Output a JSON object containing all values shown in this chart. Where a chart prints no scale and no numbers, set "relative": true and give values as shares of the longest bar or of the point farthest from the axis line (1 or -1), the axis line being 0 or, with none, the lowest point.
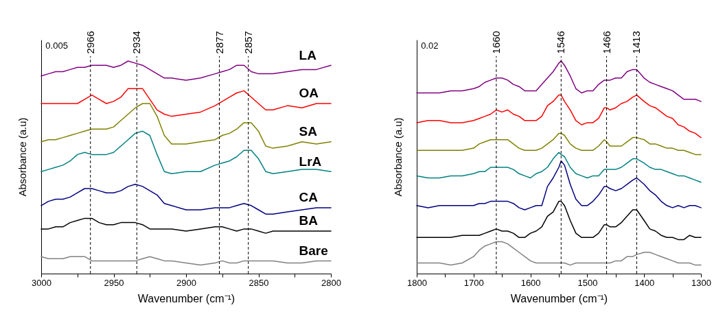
{
  "chart_data": [
    {
      "type": "line",
      "relative": true,
      "xlabel": "Wavenumber (cm⁻¹)",
      "ylabel": "Absorbance (a.u)",
      "xlim": [
        3000,
        2800
      ],
      "xticks": [
        3000,
        {
          "value": 2975,
          "label": null
        },
        2950,
        {
          "value": 2925,
          "label": null
        },
        2900,
        {
          "value": 2875,
          "label": null
        },
        2850,
        {
          "value": 2825,
          "label": null
        },
        2800
      ],
      "legend": false,
      "grid": false,
      "line_style": "solid",
      "marker": "none",
      "x": [
        3000,
        2995,
        2990,
        2985,
        2980,
        2975,
        2970,
        2965,
        2960,
        2955,
        2950,
        2945,
        2940,
        2935,
        2930,
        2925,
        2920,
        2915,
        2910,
        2900,
        2890,
        2880,
        2875,
        2870,
        2865,
        2860,
        2855,
        2850,
        2845,
        2840,
        2830,
        2820,
        2810,
        2800
      ],
      "series": [
        {
          "name": "LA",
          "color": "#800080",
          "values": [
            0.93,
            0.94,
            0.95,
            0.95,
            0.96,
            0.97,
            0.97,
            0.98,
            0.98,
            0.98,
            0.97,
            0.98,
            1.0,
            0.99,
            0.98,
            0.96,
            0.94,
            0.92,
            0.92,
            0.91,
            0.92,
            0.94,
            0.95,
            0.96,
            0.98,
            0.98,
            0.95,
            0.94,
            0.94,
            0.94,
            0.95,
            0.96,
            0.96,
            0.98
          ]
        },
        {
          "name": "OA",
          "color": "#ff0000",
          "values": [
            0.8,
            0.8,
            0.8,
            0.8,
            0.8,
            0.8,
            0.82,
            0.84,
            0.82,
            0.8,
            0.81,
            0.83,
            0.87,
            0.87,
            0.87,
            0.82,
            0.77,
            0.75,
            0.74,
            0.75,
            0.76,
            0.79,
            0.81,
            0.83,
            0.85,
            0.86,
            0.83,
            0.8,
            0.77,
            0.77,
            0.79,
            0.78,
            0.8,
            0.8
          ]
        },
        {
          "name": "SA",
          "color": "#808000",
          "values": [
            0.62,
            0.63,
            0.63,
            0.64,
            0.65,
            0.66,
            0.67,
            0.68,
            0.68,
            0.68,
            0.69,
            0.72,
            0.75,
            0.78,
            0.8,
            0.8,
            0.74,
            0.65,
            0.61,
            0.61,
            0.62,
            0.63,
            0.65,
            0.66,
            0.68,
            0.71,
            0.71,
            0.67,
            0.6,
            0.59,
            0.6,
            0.62,
            0.61,
            0.62
          ]
        },
        {
          "name": "LrA",
          "color": "#008080",
          "values": [
            0.48,
            0.49,
            0.5,
            0.51,
            0.53,
            0.56,
            0.57,
            0.56,
            0.56,
            0.56,
            0.57,
            0.6,
            0.63,
            0.66,
            0.67,
            0.65,
            0.56,
            0.48,
            0.47,
            0.48,
            0.48,
            0.51,
            0.52,
            0.53,
            0.55,
            0.58,
            0.58,
            0.54,
            0.48,
            0.47,
            0.48,
            0.49,
            0.49,
            0.48
          ]
        },
        {
          "name": "CA",
          "color": "#000080",
          "values": [
            0.32,
            0.34,
            0.35,
            0.35,
            0.36,
            0.38,
            0.4,
            0.4,
            0.39,
            0.38,
            0.38,
            0.39,
            0.41,
            0.42,
            0.41,
            0.39,
            0.37,
            0.33,
            0.32,
            0.3,
            0.3,
            0.31,
            0.31,
            0.31,
            0.32,
            0.33,
            0.32,
            0.3,
            0.28,
            0.28,
            0.29,
            0.3,
            0.31,
            0.31
          ]
        },
        {
          "name": "BA",
          "color": "#000000",
          "values": [
            0.21,
            0.21,
            0.22,
            0.22,
            0.24,
            0.25,
            0.26,
            0.26,
            0.24,
            0.23,
            0.23,
            0.24,
            0.24,
            0.24,
            0.23,
            0.21,
            0.21,
            0.21,
            0.21,
            0.2,
            0.21,
            0.22,
            0.22,
            0.21,
            0.2,
            0.21,
            0.21,
            0.2,
            0.19,
            0.2,
            0.2,
            0.2,
            0.2,
            0.2
          ]
        },
        {
          "name": "Bare",
          "color": "#808080",
          "values": [
            0.08,
            0.07,
            0.07,
            0.07,
            0.08,
            0.08,
            0.08,
            0.06,
            0.06,
            0.06,
            0.06,
            0.06,
            0.06,
            0.06,
            0.07,
            0.08,
            0.07,
            0.06,
            0.06,
            0.05,
            0.04,
            0.05,
            0.06,
            0.05,
            0.05,
            0.06,
            0.06,
            0.06,
            0.06,
            0.06,
            0.05,
            0.05,
            0.06,
            0.06
          ]
        }
      ],
      "ref_lines": [
        {
          "axis": "x",
          "value": 2966,
          "label": "2966",
          "line_style": "dashed",
          "color": "#000000"
        },
        {
          "axis": "x",
          "value": 2934,
          "label": "2934",
          "line_style": "dashed",
          "color": "#000000"
        },
        {
          "axis": "x",
          "value": 2877,
          "label": "2877",
          "line_style": "dashed",
          "color": "#000000"
        },
        {
          "axis": "x",
          "value": 2857,
          "label": "2857",
          "line_style": "dashed",
          "color": "#000000"
        }
      ],
      "annotations": [
        "0.005"
      ]
    },
    {
      "type": "line",
      "relative": true,
      "xlabel": "Wavenumber (cm⁻¹)",
      "ylabel": "Absorbance (a.u)",
      "xlim": [
        1800,
        1300
      ],
      "xticks": [
        1800,
        {
          "value": 1750,
          "label": null
        },
        1700,
        {
          "value": 1650,
          "label": null
        },
        1600,
        {
          "value": 1550,
          "label": null
        },
        1500,
        {
          "value": 1450,
          "label": null
        },
        1400,
        {
          "value": 1350,
          "label": null
        },
        1300
      ],
      "legend": false,
      "grid": false,
      "line_style": "solid",
      "marker": "none",
      "x": [
        1800,
        1780,
        1760,
        1740,
        1720,
        1700,
        1690,
        1680,
        1670,
        1660,
        1650,
        1640,
        1630,
        1620,
        1610,
        1600,
        1590,
        1580,
        1570,
        1560,
        1550,
        1546,
        1540,
        1530,
        1520,
        1510,
        1500,
        1490,
        1480,
        1470,
        1466,
        1460,
        1450,
        1440,
        1430,
        1420,
        1413,
        1400,
        1390,
        1380,
        1370,
        1360,
        1350,
        1340,
        1330,
        1320,
        1310,
        1300
      ],
      "series": [
        {
          "color": "#800080",
          "values": [
            0.85,
            0.85,
            0.85,
            0.86,
            0.86,
            0.87,
            0.88,
            0.9,
            0.91,
            0.92,
            0.92,
            0.91,
            0.89,
            0.88,
            0.86,
            0.86,
            0.86,
            0.89,
            0.92,
            0.95,
            0.99,
            1.0,
            0.98,
            0.93,
            0.87,
            0.85,
            0.86,
            0.86,
            0.89,
            0.91,
            0.91,
            0.91,
            0.92,
            0.92,
            0.95,
            0.96,
            0.96,
            0.92,
            0.9,
            0.89,
            0.88,
            0.87,
            0.86,
            0.84,
            0.82,
            0.82,
            0.82,
            0.81
          ]
        },
        {
          "color": "#ff0000",
          "values": [
            0.71,
            0.72,
            0.72,
            0.71,
            0.71,
            0.72,
            0.73,
            0.74,
            0.75,
            0.77,
            0.76,
            0.77,
            0.75,
            0.74,
            0.72,
            0.72,
            0.72,
            0.74,
            0.79,
            0.81,
            0.84,
            0.84,
            0.81,
            0.77,
            0.72,
            0.7,
            0.71,
            0.71,
            0.73,
            0.78,
            0.78,
            0.77,
            0.78,
            0.8,
            0.81,
            0.83,
            0.84,
            0.81,
            0.79,
            0.78,
            0.76,
            0.74,
            0.73,
            0.7,
            0.69,
            0.67,
            0.66,
            0.64
          ]
        },
        {
          "color": "#808000",
          "values": [
            0.58,
            0.58,
            0.58,
            0.58,
            0.58,
            0.59,
            0.61,
            0.62,
            0.63,
            0.63,
            0.63,
            0.63,
            0.61,
            0.59,
            0.58,
            0.58,
            0.58,
            0.59,
            0.61,
            0.63,
            0.66,
            0.66,
            0.65,
            0.61,
            0.59,
            0.58,
            0.58,
            0.58,
            0.6,
            0.63,
            0.62,
            0.6,
            0.6,
            0.6,
            0.62,
            0.64,
            0.64,
            0.63,
            0.61,
            0.61,
            0.6,
            0.59,
            0.59,
            0.58,
            0.58,
            0.57,
            0.56,
            0.56
          ]
        },
        {
          "color": "#008080",
          "values": [
            0.46,
            0.45,
            0.45,
            0.46,
            0.46,
            0.47,
            0.48,
            0.48,
            0.5,
            0.5,
            0.5,
            0.5,
            0.49,
            0.47,
            0.46,
            0.45,
            0.47,
            0.48,
            0.5,
            0.54,
            0.57,
            0.56,
            0.55,
            0.5,
            0.47,
            0.46,
            0.45,
            0.46,
            0.46,
            0.49,
            0.49,
            0.49,
            0.49,
            0.5,
            0.52,
            0.54,
            0.54,
            0.52,
            0.5,
            0.49,
            0.49,
            0.48,
            0.47,
            0.46,
            0.46,
            0.45,
            0.44,
            0.43
          ]
        },
        {
          "color": "#000080",
          "values": [
            0.32,
            0.31,
            0.32,
            0.32,
            0.32,
            0.32,
            0.33,
            0.33,
            0.34,
            0.34,
            0.34,
            0.34,
            0.33,
            0.31,
            0.3,
            0.31,
            0.32,
            0.32,
            0.41,
            0.45,
            0.5,
            0.53,
            0.51,
            0.42,
            0.35,
            0.32,
            0.32,
            0.34,
            0.37,
            0.41,
            0.41,
            0.4,
            0.39,
            0.4,
            0.42,
            0.44,
            0.45,
            0.42,
            0.39,
            0.37,
            0.34,
            0.32,
            0.31,
            0.32,
            0.31,
            0.32,
            0.32,
            0.31
          ]
        },
        {
          "color": "#000000",
          "values": [
            0.17,
            0.17,
            0.17,
            0.17,
            0.18,
            0.18,
            0.18,
            0.19,
            0.2,
            0.21,
            0.2,
            0.2,
            0.19,
            0.17,
            0.17,
            0.19,
            0.2,
            0.22,
            0.27,
            0.29,
            0.34,
            0.34,
            0.32,
            0.25,
            0.19,
            0.17,
            0.17,
            0.17,
            0.19,
            0.23,
            0.23,
            0.22,
            0.22,
            0.24,
            0.27,
            0.3,
            0.3,
            0.25,
            0.21,
            0.2,
            0.18,
            0.17,
            0.17,
            0.16,
            0.16,
            0.18,
            0.17,
            0.17
          ]
        },
        {
          "color": "#808080",
          "values": [
            0.05,
            0.05,
            0.05,
            0.04,
            0.05,
            0.08,
            0.11,
            0.13,
            0.14,
            0.15,
            0.15,
            0.14,
            0.12,
            0.1,
            0.08,
            0.06,
            0.05,
            0.05,
            0.05,
            0.05,
            0.05,
            0.05,
            0.05,
            0.04,
            0.05,
            0.05,
            0.05,
            0.05,
            0.05,
            0.05,
            0.05,
            0.05,
            0.06,
            0.06,
            0.08,
            0.08,
            0.09,
            0.1,
            0.1,
            0.09,
            0.08,
            0.07,
            0.06,
            0.05,
            0.05,
            0.05,
            0.04,
            0.04
          ]
        }
      ],
      "ref_lines": [
        {
          "axis": "x",
          "value": 1660,
          "label": "1660",
          "line_style": "dashed",
          "color": "#000000"
        },
        {
          "axis": "x",
          "value": 1546,
          "label": "1546",
          "line_style": "dashed",
          "color": "#000000"
        },
        {
          "axis": "x",
          "value": 1466,
          "label": "1466",
          "line_style": "dashed",
          "color": "#000000"
        },
        {
          "axis": "x",
          "value": 1413,
          "label": "1413",
          "line_style": "dashed",
          "color": "#000000"
        }
      ],
      "annotations": [
        "0.02"
      ]
    }
  ]
}
